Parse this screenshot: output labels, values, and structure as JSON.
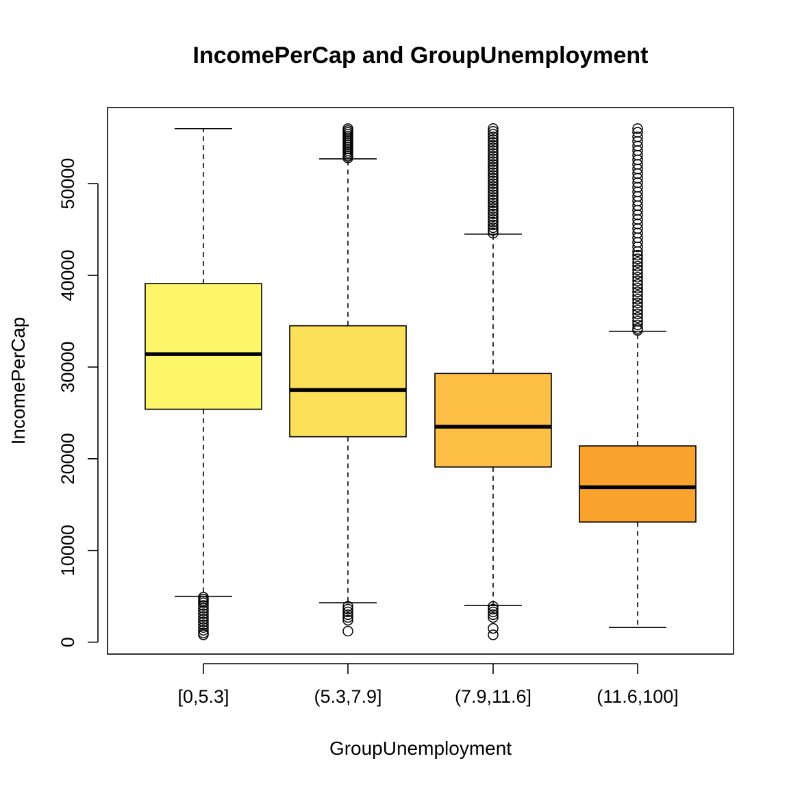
{
  "chart_data": {
    "type": "boxplot",
    "title": "IncomePerCap and GroupUnemployment",
    "xlabel": "GroupUnemployment",
    "ylabel": "IncomePerCap",
    "ylim": [
      -1300,
      58300
    ],
    "y_ticks": [
      0,
      10000,
      20000,
      30000,
      40000,
      50000
    ],
    "y_tick_labels": [
      "0",
      "10000",
      "20000",
      "30000",
      "40000",
      "50000"
    ],
    "grid": false,
    "legend": "none",
    "categories": [
      "[0,5.3]",
      "(5.3,7.9]",
      "(7.9,11.6]",
      "(11.6,100]"
    ],
    "boxes": [
      {
        "category": "[0,5.3]",
        "whisker_low": 5000,
        "q1": 25400,
        "median": 31400,
        "q3": 39100,
        "whisker_high": 56000,
        "outliers": [
          4900,
          4700,
          4500,
          4300,
          4000,
          3700,
          3400,
          3100,
          2800,
          2500,
          2200,
          1900,
          1600,
          1300,
          1000,
          800
        ],
        "color": "#FEF66A"
      },
      {
        "category": "(5.3,7.9]",
        "whisker_low": 4300,
        "q1": 22400,
        "median": 27500,
        "q3": 34500,
        "whisker_high": 52700,
        "outliers": [
          56000,
          55800,
          55600,
          55400,
          55200,
          55000,
          54800,
          54600,
          54400,
          54200,
          54000,
          53800,
          53600,
          53400,
          53200,
          53000,
          52800,
          3900,
          3600,
          3300,
          3000,
          2700,
          2400,
          1200
        ],
        "color": "#FDE05A"
      },
      {
        "category": "(7.9,11.6]",
        "whisker_low": 4000,
        "q1": 19100,
        "median": 23500,
        "q3": 29300,
        "whisker_high": 44500,
        "outliers": [
          56000,
          55700,
          55400,
          55100,
          54800,
          54500,
          54200,
          53900,
          53600,
          53300,
          53000,
          52700,
          52400,
          52100,
          51800,
          51500,
          51200,
          50900,
          50600,
          50300,
          50000,
          49700,
          49400,
          49100,
          48800,
          48500,
          48200,
          47900,
          47600,
          47300,
          47000,
          46700,
          46400,
          46100,
          45800,
          45500,
          45200,
          44900,
          44600,
          3900,
          3600,
          3300,
          3000,
          2700,
          1500,
          800
        ],
        "color": "#FDBF45"
      },
      {
        "category": "(11.6,100]",
        "whisker_low": 1600,
        "q1": 13100,
        "median": 16900,
        "q3": 21400,
        "whisker_high": 33900,
        "outliers": [
          56000,
          55600,
          55100,
          54600,
          54100,
          53600,
          53100,
          52600,
          52100,
          51600,
          51100,
          50600,
          50100,
          49600,
          49100,
          48600,
          48100,
          47600,
          47100,
          46600,
          46100,
          45600,
          45100,
          44600,
          44100,
          43600,
          43100,
          42600,
          42200,
          41800,
          41400,
          41000,
          40600,
          40200,
          39800,
          39400,
          39000,
          38600,
          38200,
          37800,
          37400,
          37000,
          36600,
          36200,
          35800,
          35400,
          35000,
          34600,
          34200,
          34000
        ],
        "color": "#F9A22C"
      }
    ]
  }
}
